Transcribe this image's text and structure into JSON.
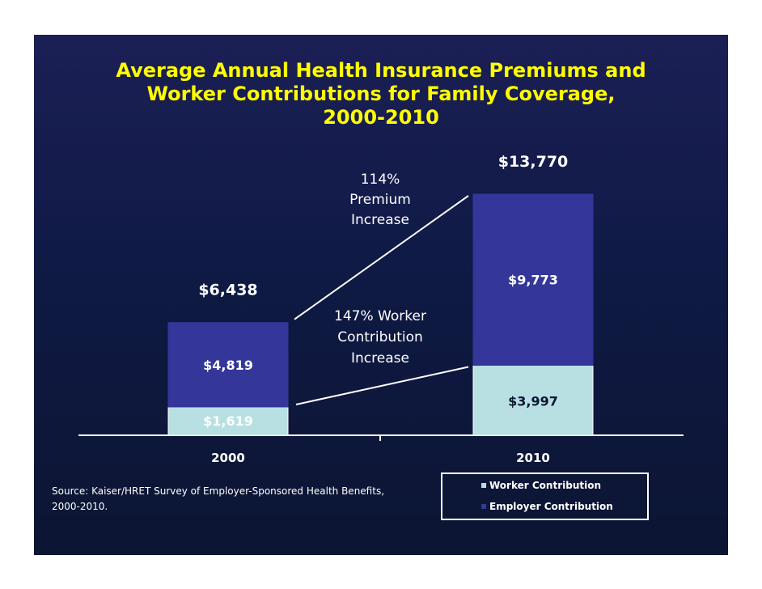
{
  "title_lines": [
    "Average Annual Health Insurance Premiums and",
    "Worker Contributions for Family Coverage,",
    "2000-2010"
  ],
  "annotations": {
    "premium_increase": [
      "114%",
      "Premium",
      "Increase"
    ],
    "worker_increase": [
      "147% Worker",
      "Contribution",
      "Increase"
    ]
  },
  "source": [
    "Source:  Kaiser/HRET Survey of Employer-Sponsored Health Benefits,",
    "2000-2010."
  ],
  "colors": {
    "worker": "#b8e0e3",
    "employer": "#34369a",
    "title": "#ffff00",
    "text": "#ffffff"
  },
  "chart_data": {
    "type": "bar",
    "stacked": true,
    "categories": [
      "2000",
      "2010"
    ],
    "series": [
      {
        "name": "Worker Contribution",
        "values": [
          1619,
          3997
        ],
        "labels": [
          "$1,619",
          "$3,997"
        ]
      },
      {
        "name": "Employer Contribution",
        "values": [
          4819,
          9773
        ],
        "labels": [
          "$4,819",
          "$9,773"
        ]
      }
    ],
    "totals": [
      6438,
      13770
    ],
    "total_labels": [
      "$6,438",
      "$13,770"
    ],
    "legend_position": "bottom-right"
  }
}
